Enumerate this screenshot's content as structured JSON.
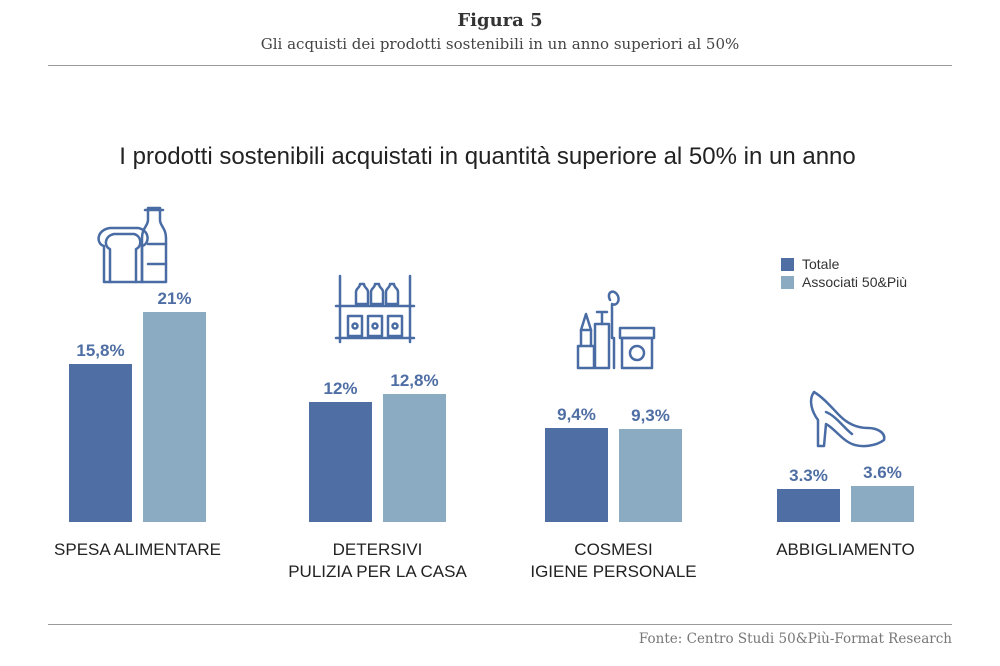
{
  "figure": {
    "title": "Figura 5",
    "subtitle": "Gli acquisti dei prodotti sostenibili in un anno superiori al 50%",
    "source": "Fonte: Centro Studi 50&Più-Format Research"
  },
  "colors": {
    "totale": "#4e6ea4",
    "associati": "#8aabc2",
    "icon": "#4a6ca5"
  },
  "chart_data": {
    "type": "bar",
    "title": "I prodotti sostenibili acquistati in quantità superiore al 50% in un anno",
    "categories": [
      [
        "SPESA ALIMENTARE"
      ],
      [
        "DETERSIVI",
        "PULIZIA PER LA CASA"
      ],
      [
        "COSMESI",
        "IGIENE PERSONALE"
      ],
      [
        "ABBIGLIAMENTO"
      ]
    ],
    "category_icons": [
      "bread-bottle-icon",
      "shelf-bottles-icon",
      "cosmetics-icon",
      "high-heel-shoe-icon"
    ],
    "series": [
      {
        "name": "Totale",
        "values": [
          15.8,
          12.0,
          9.4,
          3.3
        ],
        "labels": [
          "15,8%",
          "12%",
          "9,4%",
          "3.3%"
        ]
      },
      {
        "name": "Associati 50&Più",
        "values": [
          21.0,
          12.8,
          9.3,
          3.6
        ],
        "labels": [
          "21%",
          "12,8%",
          "9,3%",
          "3.6%"
        ]
      }
    ],
    "legend_position": "right",
    "grid": false
  }
}
